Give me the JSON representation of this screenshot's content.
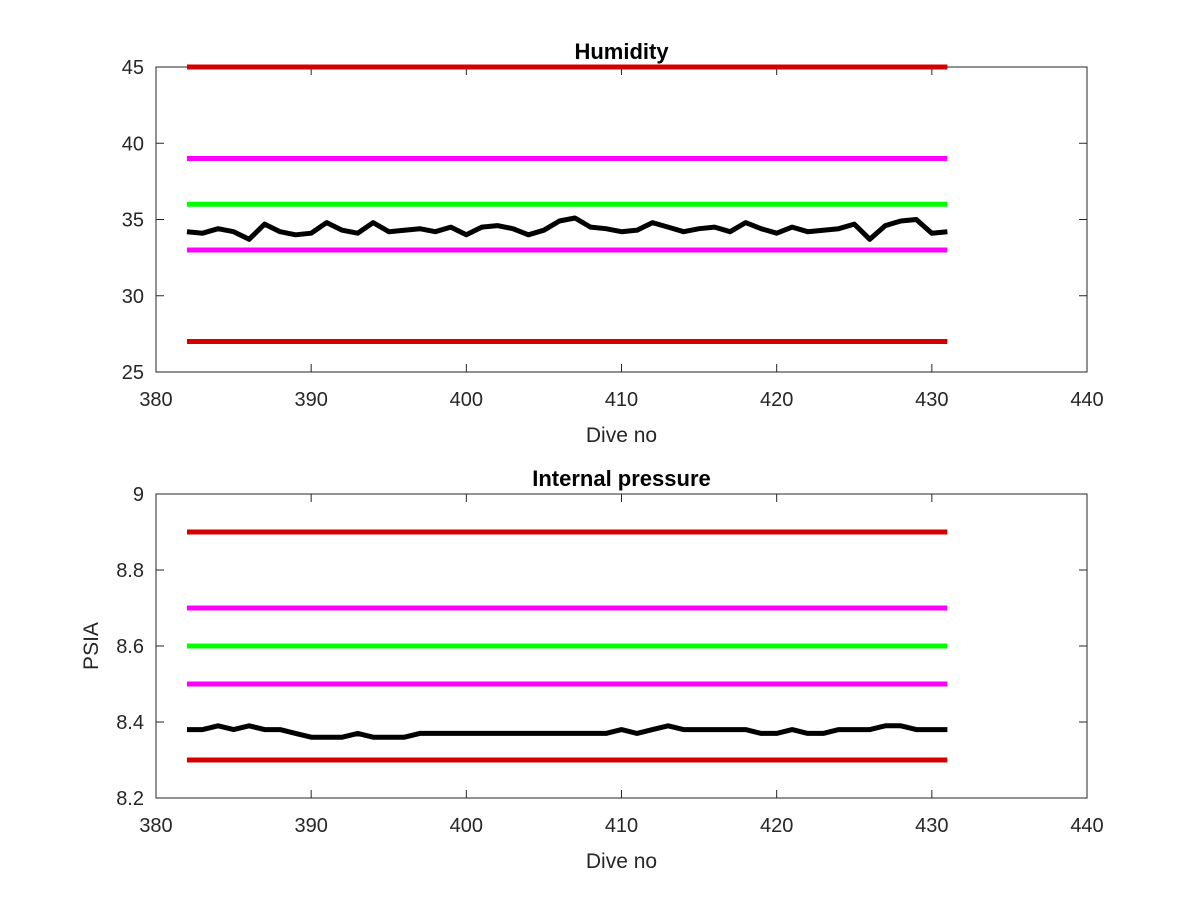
{
  "chart_data": [
    {
      "type": "line",
      "title": "Humidity",
      "xlabel": "Dive no",
      "ylabel": "",
      "xlim": [
        380,
        440
      ],
      "ylim": [
        25,
        45
      ],
      "xticks": [
        "380",
        "390",
        "400",
        "410",
        "420",
        "430",
        "440"
      ],
      "yticks": [
        "25",
        "30",
        "35",
        "40",
        "45"
      ],
      "grid": false,
      "series": [
        {
          "color": "#d40000",
          "x": [
            382,
            431
          ],
          "y": [
            45,
            45
          ]
        },
        {
          "color": "#ff00ff",
          "x": [
            382,
            431
          ],
          "y": [
            39,
            39
          ]
        },
        {
          "color": "#00ff00",
          "x": [
            382,
            431
          ],
          "y": [
            36,
            36
          ]
        },
        {
          "color": "#ff00ff",
          "x": [
            382,
            431
          ],
          "y": [
            33,
            33
          ]
        },
        {
          "color": "#d40000",
          "x": [
            382,
            431
          ],
          "y": [
            27,
            27
          ]
        },
        {
          "color": "#000000",
          "x": [
            382,
            383,
            384,
            385,
            386,
            387,
            388,
            389,
            390,
            391,
            392,
            393,
            394,
            395,
            396,
            397,
            398,
            399,
            400,
            401,
            402,
            403,
            404,
            405,
            406,
            407,
            408,
            409,
            410,
            411,
            412,
            413,
            414,
            415,
            416,
            417,
            418,
            419,
            420,
            421,
            422,
            423,
            424,
            425,
            426,
            427,
            428,
            429,
            430,
            431
          ],
          "y": [
            34.2,
            34.1,
            34.4,
            34.2,
            33.7,
            34.7,
            34.2,
            34.0,
            34.1,
            34.8,
            34.3,
            34.1,
            34.8,
            34.2,
            34.3,
            34.4,
            34.2,
            34.5,
            34.0,
            34.5,
            34.6,
            34.4,
            34.0,
            34.3,
            34.9,
            35.1,
            34.5,
            34.4,
            34.2,
            34.3,
            34.8,
            34.5,
            34.2,
            34.4,
            34.5,
            34.2,
            34.8,
            34.4,
            34.1,
            34.5,
            34.2,
            34.3,
            34.4,
            34.7,
            33.7,
            34.6,
            34.9,
            35.0,
            34.1,
            34.2
          ]
        }
      ]
    },
    {
      "type": "line",
      "title": "Internal pressure",
      "xlabel": "Dive no",
      "ylabel": "PSIA",
      "xlim": [
        380,
        440
      ],
      "ylim": [
        8.2,
        9
      ],
      "xticks": [
        "380",
        "390",
        "400",
        "410",
        "420",
        "430",
        "440"
      ],
      "yticks": [
        "8.2",
        "8.4",
        "8.6",
        "8.8",
        "9"
      ],
      "grid": false,
      "series": [
        {
          "color": "#d40000",
          "x": [
            382,
            431
          ],
          "y": [
            8.9,
            8.9
          ]
        },
        {
          "color": "#ff00ff",
          "x": [
            382,
            431
          ],
          "y": [
            8.7,
            8.7
          ]
        },
        {
          "color": "#00ff00",
          "x": [
            382,
            431
          ],
          "y": [
            8.6,
            8.6
          ]
        },
        {
          "color": "#ff00ff",
          "x": [
            382,
            431
          ],
          "y": [
            8.5,
            8.5
          ]
        },
        {
          "color": "#d40000",
          "x": [
            382,
            431
          ],
          "y": [
            8.3,
            8.3
          ]
        },
        {
          "color": "#000000",
          "x": [
            382,
            383,
            384,
            385,
            386,
            387,
            388,
            389,
            390,
            391,
            392,
            393,
            394,
            395,
            396,
            397,
            398,
            399,
            400,
            401,
            402,
            403,
            404,
            405,
            406,
            407,
            408,
            409,
            410,
            411,
            412,
            413,
            414,
            415,
            416,
            417,
            418,
            419,
            420,
            421,
            422,
            423,
            424,
            425,
            426,
            427,
            428,
            429,
            430,
            431
          ],
          "y": [
            8.38,
            8.38,
            8.39,
            8.38,
            8.39,
            8.38,
            8.38,
            8.37,
            8.36,
            8.36,
            8.36,
            8.37,
            8.36,
            8.36,
            8.36,
            8.37,
            8.37,
            8.37,
            8.37,
            8.37,
            8.37,
            8.37,
            8.37,
            8.37,
            8.37,
            8.37,
            8.37,
            8.37,
            8.38,
            8.37,
            8.38,
            8.39,
            8.38,
            8.38,
            8.38,
            8.38,
            8.38,
            8.37,
            8.37,
            8.38,
            8.37,
            8.37,
            8.38,
            8.38,
            8.38,
            8.39,
            8.39,
            8.38,
            8.38,
            8.38
          ]
        }
      ]
    }
  ]
}
